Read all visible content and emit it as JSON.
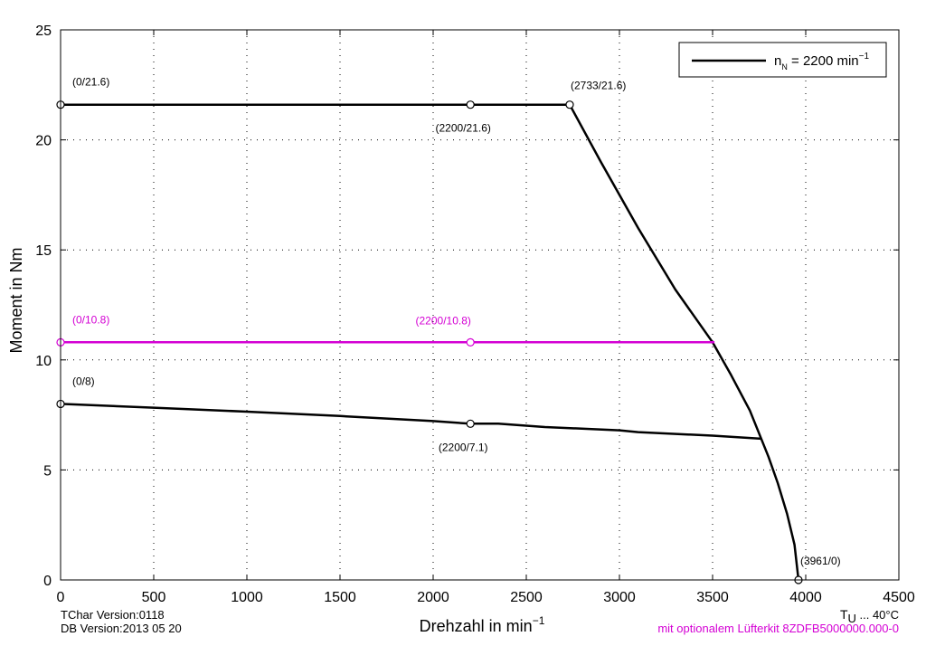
{
  "chart_data": {
    "type": "line",
    "xlabel": "Drehzahl in min",
    "xlabel_sup": "−1",
    "ylabel": "Moment in Nm",
    "xlim": [
      0,
      4500
    ],
    "ylim": [
      0,
      25
    ],
    "xticks": [
      0,
      500,
      1000,
      1500,
      2000,
      2500,
      3000,
      3500,
      4000,
      4500
    ],
    "yticks": [
      0,
      5,
      10,
      15,
      20,
      25
    ],
    "grid": true,
    "legend": {
      "position": "top-right",
      "entry_main": "n",
      "entry_sub": "N",
      "entry_rest": " = 2200 min",
      "entry_sup": "−1"
    },
    "colors": {
      "black": "#000000",
      "magenta": "#d400d4"
    },
    "series": [
      {
        "name": "nN = 2200 min-1",
        "color": "#000000",
        "x": [
          0,
          2200,
          2733,
          2900,
          3100,
          3300,
          3500,
          3600,
          3700,
          3800,
          3850,
          3900,
          3940,
          3961
        ],
        "y": [
          21.6,
          21.6,
          21.6,
          19.0,
          16.0,
          13.2,
          10.8,
          9.3,
          7.7,
          5.6,
          4.4,
          3.0,
          1.6,
          0
        ]
      },
      {
        "color": "#d400d4",
        "x": [
          0,
          2200,
          3510
        ],
        "y": [
          10.8,
          10.8,
          10.8
        ]
      },
      {
        "color": "#000000",
        "x": [
          0,
          500,
          1000,
          1500,
          2000,
          2200,
          2350,
          2600,
          3000,
          3100,
          3500,
          3760
        ],
        "y": [
          8.0,
          7.83,
          7.65,
          7.45,
          7.22,
          7.1,
          7.1,
          6.95,
          6.8,
          6.72,
          6.56,
          6.42
        ]
      }
    ],
    "markers": [
      {
        "x": 0,
        "y": 21.6,
        "label": "(0/21.6)",
        "color": "#000000",
        "label_pos": "above"
      },
      {
        "x": 2200,
        "y": 21.6,
        "label": "(2200/21.6)",
        "color": "#000000",
        "label_pos": "below-left"
      },
      {
        "x": 2733,
        "y": 21.6,
        "label": "(2733/21.6)",
        "color": "#000000",
        "label_pos": "above"
      },
      {
        "x": 3961,
        "y": 0,
        "label": "(3961/0)",
        "color": "#000000",
        "label_pos": "above"
      },
      {
        "x": 0,
        "y": 10.8,
        "label": "(0/10.8)",
        "color": "#d400d4",
        "label_pos": "above"
      },
      {
        "x": 2200,
        "y": 10.8,
        "label": "(2200/10.8)",
        "color": "#d400d4",
        "label_pos": "above-left"
      },
      {
        "x": 0,
        "y": 8,
        "label": "(0/8)",
        "color": "#000000",
        "label_pos": "above"
      },
      {
        "x": 2200,
        "y": 7.1,
        "label": "(2200/7.1)",
        "color": "#000000",
        "label_pos": "below-left"
      }
    ]
  },
  "footer": {
    "tchar_version": "TChar Version:0118",
    "db_version": "DB Version:2013 05 20",
    "tu_main": "T",
    "tu_sub": "U",
    "tu_rest": " ... 40°C",
    "lufterkit": "mit optionalem Lüfterkit 8ZDFB5000000.000-0"
  }
}
